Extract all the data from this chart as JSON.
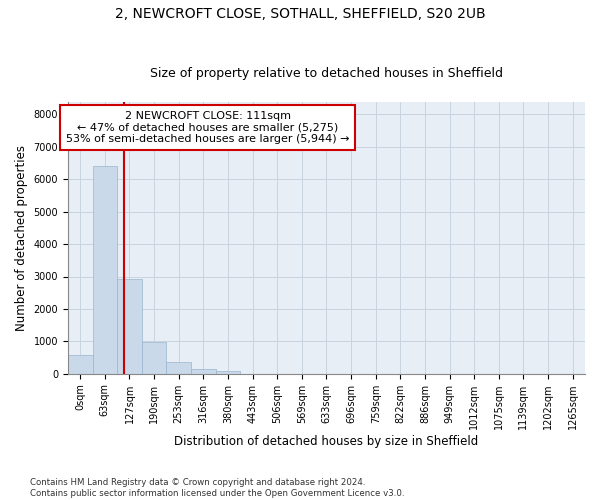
{
  "title_line1": "2, NEWCROFT CLOSE, SOTHALL, SHEFFIELD, S20 2UB",
  "title_line2": "Size of property relative to detached houses in Sheffield",
  "xlabel": "Distribution of detached houses by size in Sheffield",
  "ylabel": "Number of detached properties",
  "bar_labels": [
    "0sqm",
    "63sqm",
    "127sqm",
    "190sqm",
    "253sqm",
    "316sqm",
    "380sqm",
    "443sqm",
    "506sqm",
    "569sqm",
    "633sqm",
    "696sqm",
    "759sqm",
    "822sqm",
    "886sqm",
    "949sqm",
    "1012sqm",
    "1075sqm",
    "1139sqm",
    "1202sqm",
    "1265sqm"
  ],
  "bar_values": [
    570,
    6400,
    2930,
    980,
    370,
    155,
    70,
    0,
    0,
    0,
    0,
    0,
    0,
    0,
    0,
    0,
    0,
    0,
    0,
    0,
    0
  ],
  "bar_color": "#c9d9ea",
  "bar_edgecolor": "#9ab4cc",
  "grid_color": "#c8d4e0",
  "background_color": "#e8eef5",
  "vline_x": 1.77,
  "vline_color": "#cc0000",
  "annotation_text": "2 NEWCROFT CLOSE: 111sqm\n← 47% of detached houses are smaller (5,275)\n53% of semi-detached houses are larger (5,944) →",
  "annotation_box_color": "white",
  "annotation_box_edgecolor": "#cc0000",
  "ylim": [
    0,
    8400
  ],
  "yticks": [
    0,
    1000,
    2000,
    3000,
    4000,
    5000,
    6000,
    7000,
    8000
  ],
  "footnote": "Contains HM Land Registry data © Crown copyright and database right 2024.\nContains public sector information licensed under the Open Government Licence v3.0.",
  "title_fontsize": 10,
  "subtitle_fontsize": 9,
  "label_fontsize": 8.5,
  "tick_fontsize": 7,
  "annot_fontsize": 8
}
